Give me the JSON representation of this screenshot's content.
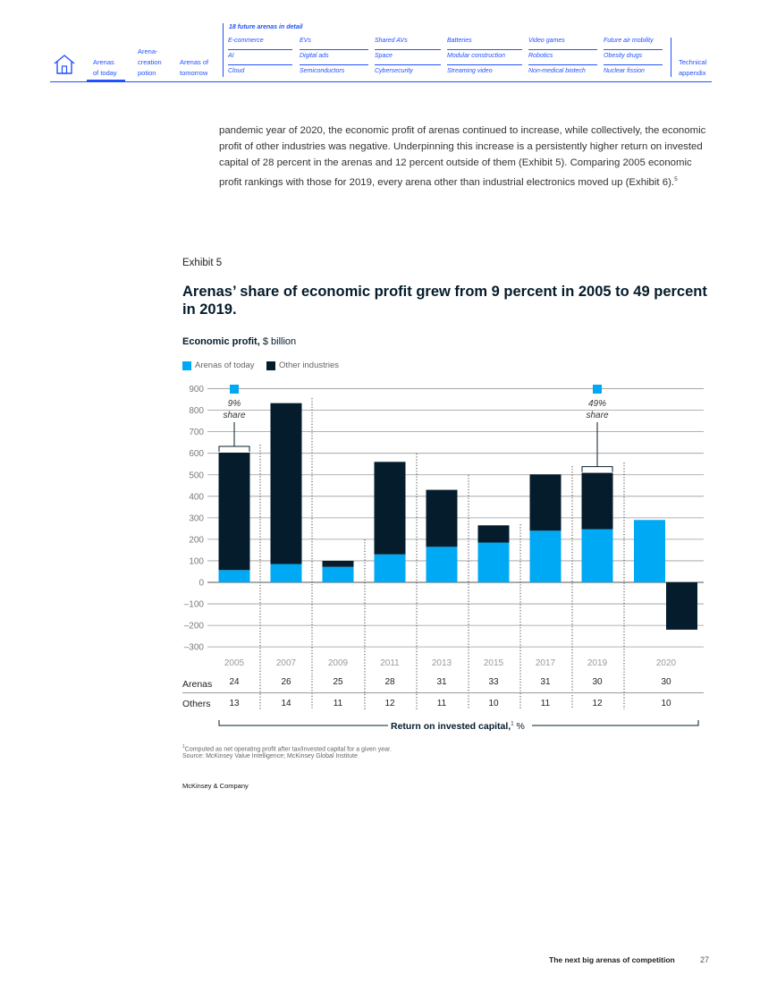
{
  "nav": {
    "primary": [
      {
        "label_lines": [
          "Arenas",
          "of today"
        ],
        "active": true
      },
      {
        "label_lines": [
          "Arena-",
          "creation",
          "potion"
        ],
        "active": false
      },
      {
        "label_lines": [
          "Arenas of",
          "tomorrow"
        ],
        "active": false
      }
    ],
    "arenas_heading": "18 future arenas in detail",
    "arenas": [
      [
        "E-commerce",
        "AI",
        "Cloud"
      ],
      [
        "EVs",
        "Digital ads",
        "Semiconductors"
      ],
      [
        "Shared AVs",
        "Space",
        "Cybersecurity"
      ],
      [
        "Batteries",
        "Modular construction",
        "Streaming video"
      ],
      [
        "Video games",
        "Robotics",
        "Non-medical biotech"
      ],
      [
        "Future air mobility",
        "Obesity drugs",
        "Nuclear fission"
      ]
    ],
    "technical_appendix_lines": [
      "Technical",
      "appendix"
    ]
  },
  "intro_text": "pandemic year of 2020, the economic profit of arenas continued to increase, while collectively, the economic profit of other industries was negative. Underpinning this increase is a persistently higher return on invested capital of 28 percent in the arenas and 12 percent outside of them (Exhibit 5). Comparing 2005 economic profit rankings with those for 2019, every arena other than industrial electronics moved up (Exhibit 6).",
  "intro_footnote_ref": "5",
  "exhibit": {
    "label": "Exhibit 5",
    "title": "Arenas’ share of economic profit grew from 9 percent in 2005 to 49 percent in 2019.",
    "ylabel_bold": "Economic profit,",
    "ylabel_unit": " $ billion"
  },
  "chart_data": {
    "type": "bar",
    "stacked": true,
    "ylabel": "Economic profit, $ billion",
    "ylim": [
      -300,
      900
    ],
    "yticks": [
      900,
      800,
      700,
      600,
      500,
      400,
      300,
      200,
      100,
      0,
      -100,
      -200,
      -300
    ],
    "ytick_labels": [
      "900",
      "800",
      "700",
      "600",
      "500",
      "400",
      "300",
      "200",
      "100",
      "0",
      "–100",
      "–200",
      "–300"
    ],
    "categories": [
      "2005",
      "2007",
      "2009",
      "2011",
      "2013",
      "2015",
      "2017",
      "2019",
      "2020"
    ],
    "series": [
      {
        "name": "Arenas of today",
        "color": "#00a9f4",
        "values": [
          57,
          85,
          72,
          130,
          165,
          185,
          240,
          247,
          290
        ]
      },
      {
        "name": "Other industries",
        "color": "#051c2c",
        "values": [
          546,
          748,
          28,
          430,
          265,
          80,
          262,
          262,
          -220
        ]
      }
    ],
    "annotations": [
      {
        "category": "2005",
        "text_lines": [
          "9%",
          "share"
        ]
      },
      {
        "category": "2019",
        "text_lines": [
          "49%",
          "share"
        ]
      }
    ],
    "legend_position": "top-left",
    "grid": true,
    "roic": {
      "caption_bold": "Return on invested capital,",
      "caption_footnote": "1",
      "caption_unit": " %",
      "rows": [
        {
          "label": "Arenas",
          "values": [
            24,
            26,
            25,
            28,
            31,
            33,
            31,
            30,
            30
          ]
        },
        {
          "label": "Others",
          "values": [
            13,
            14,
            11,
            12,
            11,
            10,
            11,
            12,
            10
          ]
        }
      ]
    }
  },
  "footnotes": {
    "note1_ref": "1",
    "note1": "Computed as net operating profit after tax/invested capital for a given year.",
    "source": "Source: McKinsey Value Intelligence; McKinsey Global Institute"
  },
  "brand": "McKinsey & Company",
  "running_title": "The next big arenas of competition",
  "page_number": "27"
}
